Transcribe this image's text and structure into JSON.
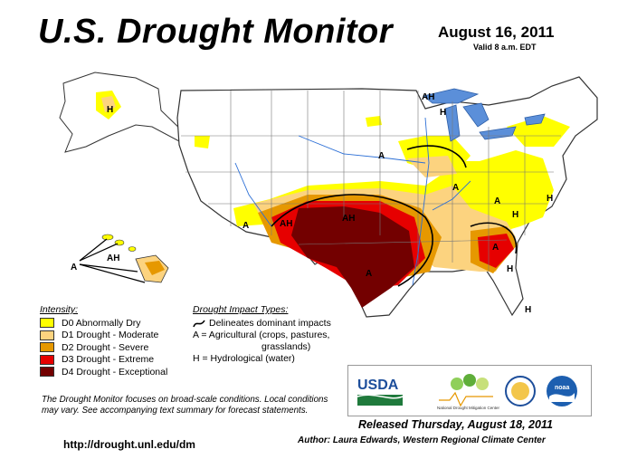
{
  "header": {
    "title": "U.S. Drought Monitor",
    "date": "August 16, 2011",
    "valid": "Valid 8 a.m. EDT"
  },
  "legend": {
    "intensity_header": "Intensity:",
    "categories": [
      {
        "label": "D0 Abnormally Dry",
        "color": "#ffff00"
      },
      {
        "label": "D1 Drought - Moderate",
        "color": "#fcd37f"
      },
      {
        "label": "D2 Drought - Severe",
        "color": "#e69800"
      },
      {
        "label": "D3 Drought - Extreme",
        "color": "#e60000"
      },
      {
        "label": "D4 Drought - Exceptional",
        "color": "#730000"
      }
    ],
    "impacts_header": "Drought Impact Types:",
    "impacts": [
      "Delineates dominant impacts",
      "A = Agricultural (crops, pastures,",
      "grasslands)",
      "H = Hydrological (water)"
    ]
  },
  "map_labels": [
    "AH",
    "AH",
    "AH",
    "AH",
    "A",
    "A",
    "A",
    "A",
    "A",
    "A",
    "A",
    "H",
    "H",
    "H",
    "H",
    "H",
    "H"
  ],
  "note": "The Drought Monitor focuses on broad-scale conditions. Local conditions may vary. See accompanying text summary for forecast statements.",
  "footer": {
    "url": "http://drought.unl.edu/dm",
    "released": "Released Thursday, August 18, 2011",
    "author": "Author: Laura Edwards, Western Regional Climate Center"
  },
  "logos": {
    "usda": "USDA",
    "ndmc": "National Drought Mitigation Center",
    "noaa": "noaa"
  }
}
